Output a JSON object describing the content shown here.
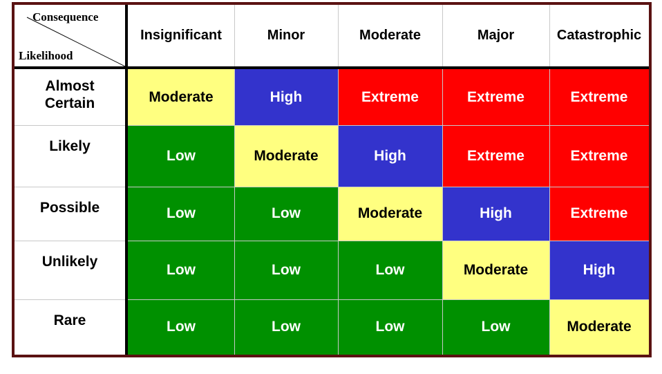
{
  "corner": {
    "consequence_label": "Consequence",
    "likelihood_label": "Likelihood"
  },
  "columns": [
    "Insignificant",
    "Minor",
    "Moderate",
    "Major",
    "Catastrophic"
  ],
  "rows": [
    "Almost Certain",
    "Likely",
    "Possible",
    "Unlikely",
    "Rare"
  ],
  "cells": [
    [
      "Moderate",
      "High",
      "Extreme",
      "Extreme",
      "Extreme"
    ],
    [
      "Low",
      "Moderate",
      "High",
      "Extreme",
      "Extreme"
    ],
    [
      "Low",
      "Low",
      "Moderate",
      "High",
      "Extreme"
    ],
    [
      "Low",
      "Low",
      "Low",
      "Moderate",
      "High"
    ],
    [
      "Low",
      "Low",
      "Low",
      "Low",
      "Moderate"
    ]
  ],
  "colors": {
    "Low": "#009000",
    "Moderate": "#ffff80",
    "High": "#3333cc",
    "Extreme": "#ff0000",
    "frame_border": "#5a1212"
  }
}
